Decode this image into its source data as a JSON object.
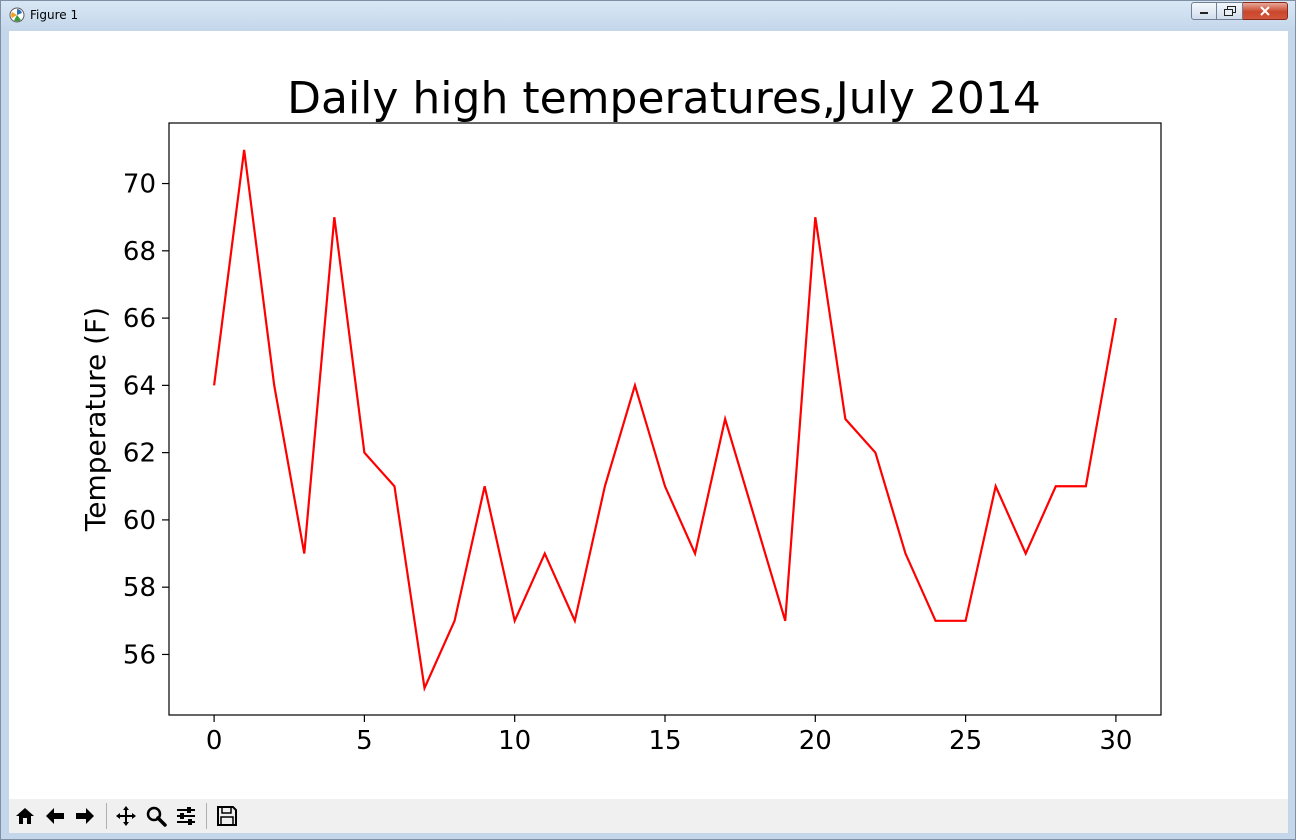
{
  "window": {
    "title": "Figure 1",
    "controls": [
      "minimize",
      "maximize",
      "close"
    ]
  },
  "toolbar": {
    "buttons": [
      {
        "name": "home-icon",
        "label": "Home"
      },
      {
        "name": "back-icon",
        "label": "Back"
      },
      {
        "name": "forward-icon",
        "label": "Forward"
      },
      {
        "name": "pan-icon",
        "label": "Pan"
      },
      {
        "name": "zoom-icon",
        "label": "Zoom"
      },
      {
        "name": "configure-subplots-icon",
        "label": "Subplots"
      },
      {
        "name": "save-icon",
        "label": "Save"
      }
    ]
  },
  "chart_data": {
    "type": "line",
    "title": "Daily high temperatures,July 2014",
    "xlabel": "",
    "ylabel": "Temperature (F)",
    "x": [
      0,
      1,
      2,
      3,
      4,
      5,
      6,
      7,
      8,
      9,
      10,
      11,
      12,
      13,
      14,
      15,
      16,
      17,
      18,
      19,
      20,
      21,
      22,
      23,
      24,
      25,
      26,
      27,
      28,
      29,
      30
    ],
    "series": [
      {
        "values": [
          64,
          71,
          64,
          59,
          69,
          62,
          61,
          55,
          57,
          61,
          57,
          59,
          57,
          61,
          64,
          61,
          59,
          63,
          60,
          57,
          69,
          63,
          62,
          59,
          57,
          57,
          61,
          59,
          61,
          61,
          66
        ],
        "color": "#ff0000"
      }
    ],
    "xlim": [
      -1.5,
      31.5
    ],
    "ylim": [
      54.2,
      71.8
    ],
    "xticks": [
      0,
      5,
      10,
      15,
      20,
      25,
      30
    ],
    "yticks": [
      56,
      58,
      60,
      62,
      64,
      66,
      68,
      70
    ],
    "grid": false,
    "legend": "none"
  }
}
